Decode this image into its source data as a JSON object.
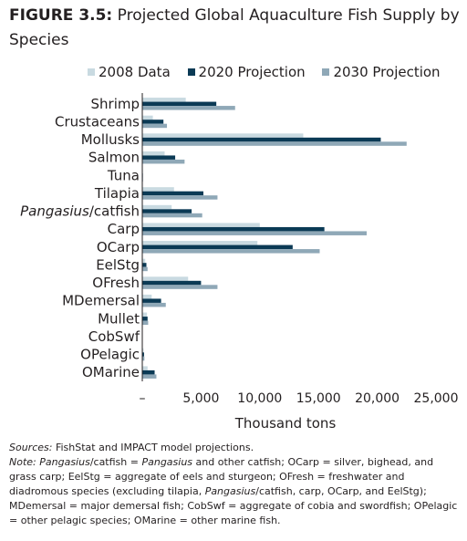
{
  "figure": {
    "label": "FIGURE 3.5:",
    "title": "Projected Global Aquaculture Fish Supply by Species"
  },
  "notes": {
    "sources_label": "Sources:",
    "sources_text": "FishStat and IMPACT model projections.",
    "note_label": "Note:",
    "note_parts": [
      {
        "text": "Pangasius",
        "italic": true
      },
      {
        "text": "/catfish = ",
        "italic": false
      },
      {
        "text": "Pangasius",
        "italic": true
      },
      {
        "text": " and other catfish; OCarp = silver, bighead, and grass carp; EelStg = aggregate of eels and sturgeon; OFresh = freshwater and diadromous species (excluding tilapia, ",
        "italic": false
      },
      {
        "text": "Pangasius",
        "italic": true
      },
      {
        "text": "/catfish, carp, OCarp, and EelStg); MDemersal = major demersal fish; CobSwf = aggregate of cobia and swordfish; OPelagic = other pelagic species; OMarine = other marine fish.",
        "italic": false
      }
    ]
  },
  "colors": {
    "s2008": "#c9dae1",
    "s2020": "#0b3a55",
    "s2030": "#8fa8b7",
    "axis": "#231f20"
  },
  "chart_data": {
    "type": "bar",
    "orientation": "horizontal",
    "title": "Projected Global Aquaculture Fish Supply by Species",
    "xlabel": "Thousand tons",
    "ylabel": "",
    "xlim": [
      0,
      25000
    ],
    "x_ticks": [
      0,
      5000,
      10000,
      15000,
      20000,
      25000
    ],
    "x_tick_labels": [
      "–",
      "5,000",
      "10,000",
      "15,000",
      "20,000",
      "25,000"
    ],
    "grid": false,
    "legend_position": "top",
    "categories": [
      {
        "parts": [
          {
            "text": "Shrimp",
            "italic": false
          }
        ]
      },
      {
        "parts": [
          {
            "text": "Crustaceans",
            "italic": false
          }
        ]
      },
      {
        "parts": [
          {
            "text": "Mollusks",
            "italic": false
          }
        ]
      },
      {
        "parts": [
          {
            "text": "Salmon",
            "italic": false
          }
        ]
      },
      {
        "parts": [
          {
            "text": "Tuna",
            "italic": false
          }
        ]
      },
      {
        "parts": [
          {
            "text": "Tilapia",
            "italic": false
          }
        ]
      },
      {
        "parts": [
          {
            "text": "Pangasius",
            "italic": true
          },
          {
            "text": "/catfish",
            "italic": false
          }
        ]
      },
      {
        "parts": [
          {
            "text": "Carp",
            "italic": false
          }
        ]
      },
      {
        "parts": [
          {
            "text": "OCarp",
            "italic": false
          }
        ]
      },
      {
        "parts": [
          {
            "text": "EelStg",
            "italic": false
          }
        ]
      },
      {
        "parts": [
          {
            "text": "OFresh",
            "italic": false
          }
        ]
      },
      {
        "parts": [
          {
            "text": "MDemersal",
            "italic": false
          }
        ]
      },
      {
        "parts": [
          {
            "text": "Mullet",
            "italic": false
          }
        ]
      },
      {
        "parts": [
          {
            "text": "CobSwf",
            "italic": false
          }
        ]
      },
      {
        "parts": [
          {
            "text": "OPelagic",
            "italic": false
          }
        ]
      },
      {
        "parts": [
          {
            "text": "OMarine",
            "italic": false
          }
        ]
      }
    ],
    "series": [
      {
        "name": "2008 Data",
        "color_key": "s2008",
        "values": [
          3700,
          900,
          13700,
          1900,
          50,
          2700,
          2500,
          10000,
          9800,
          250,
          3900,
          800,
          400,
          20,
          100,
          450
        ]
      },
      {
        "name": "2020 Projection",
        "color_key": "s2020",
        "values": [
          6300,
          1800,
          20300,
          2800,
          50,
          5200,
          4200,
          15500,
          12800,
          350,
          5000,
          1600,
          450,
          20,
          150,
          1050
        ]
      },
      {
        "name": "2030 Projection",
        "color_key": "s2030",
        "values": [
          7900,
          2100,
          22500,
          3600,
          60,
          6400,
          5100,
          19100,
          15100,
          450,
          6400,
          2000,
          500,
          30,
          180,
          1200
        ]
      }
    ]
  }
}
